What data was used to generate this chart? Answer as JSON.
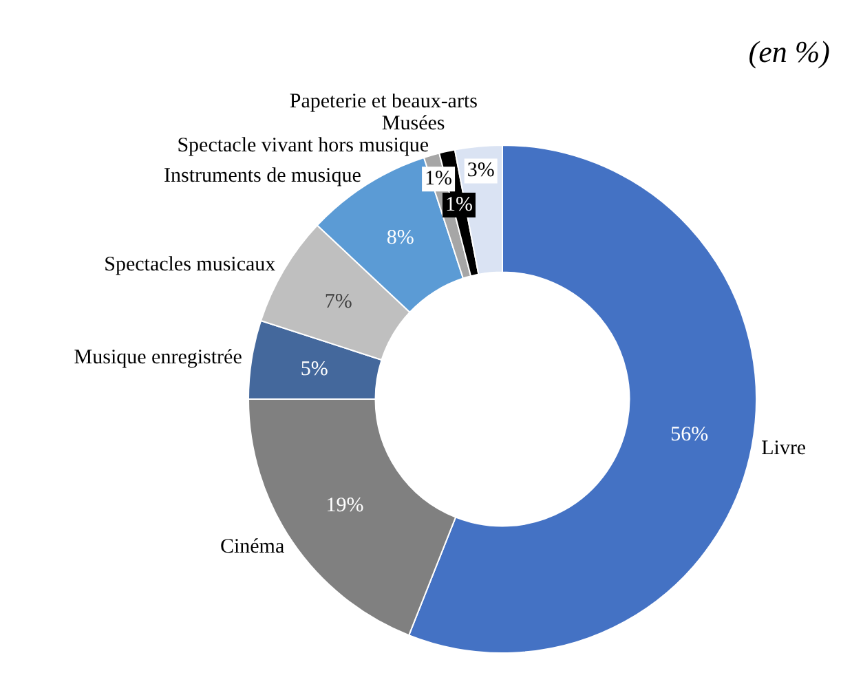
{
  "chart_data": {
    "type": "donut",
    "subtitle": "(en %)",
    "categories": [
      "Livre",
      "Cinéma",
      "Musique enregistrée",
      "Spectacles musicaux",
      "Instruments de musique",
      "Spectacle vivant hors musique",
      "Musées",
      "Papeterie et beaux-arts"
    ],
    "values": [
      56,
      19,
      5,
      7,
      8,
      1,
      1,
      3
    ],
    "value_labels": [
      "56%",
      "19%",
      "5%",
      "7%",
      "8%",
      "1%",
      "1%",
      "3%"
    ],
    "colors": [
      "#4472c4",
      "#808080",
      "#44689c",
      "#bfbfbf",
      "#5b9bd5",
      "#a6a6a6",
      "#000000",
      "#dae3f3"
    ],
    "legend": false
  }
}
